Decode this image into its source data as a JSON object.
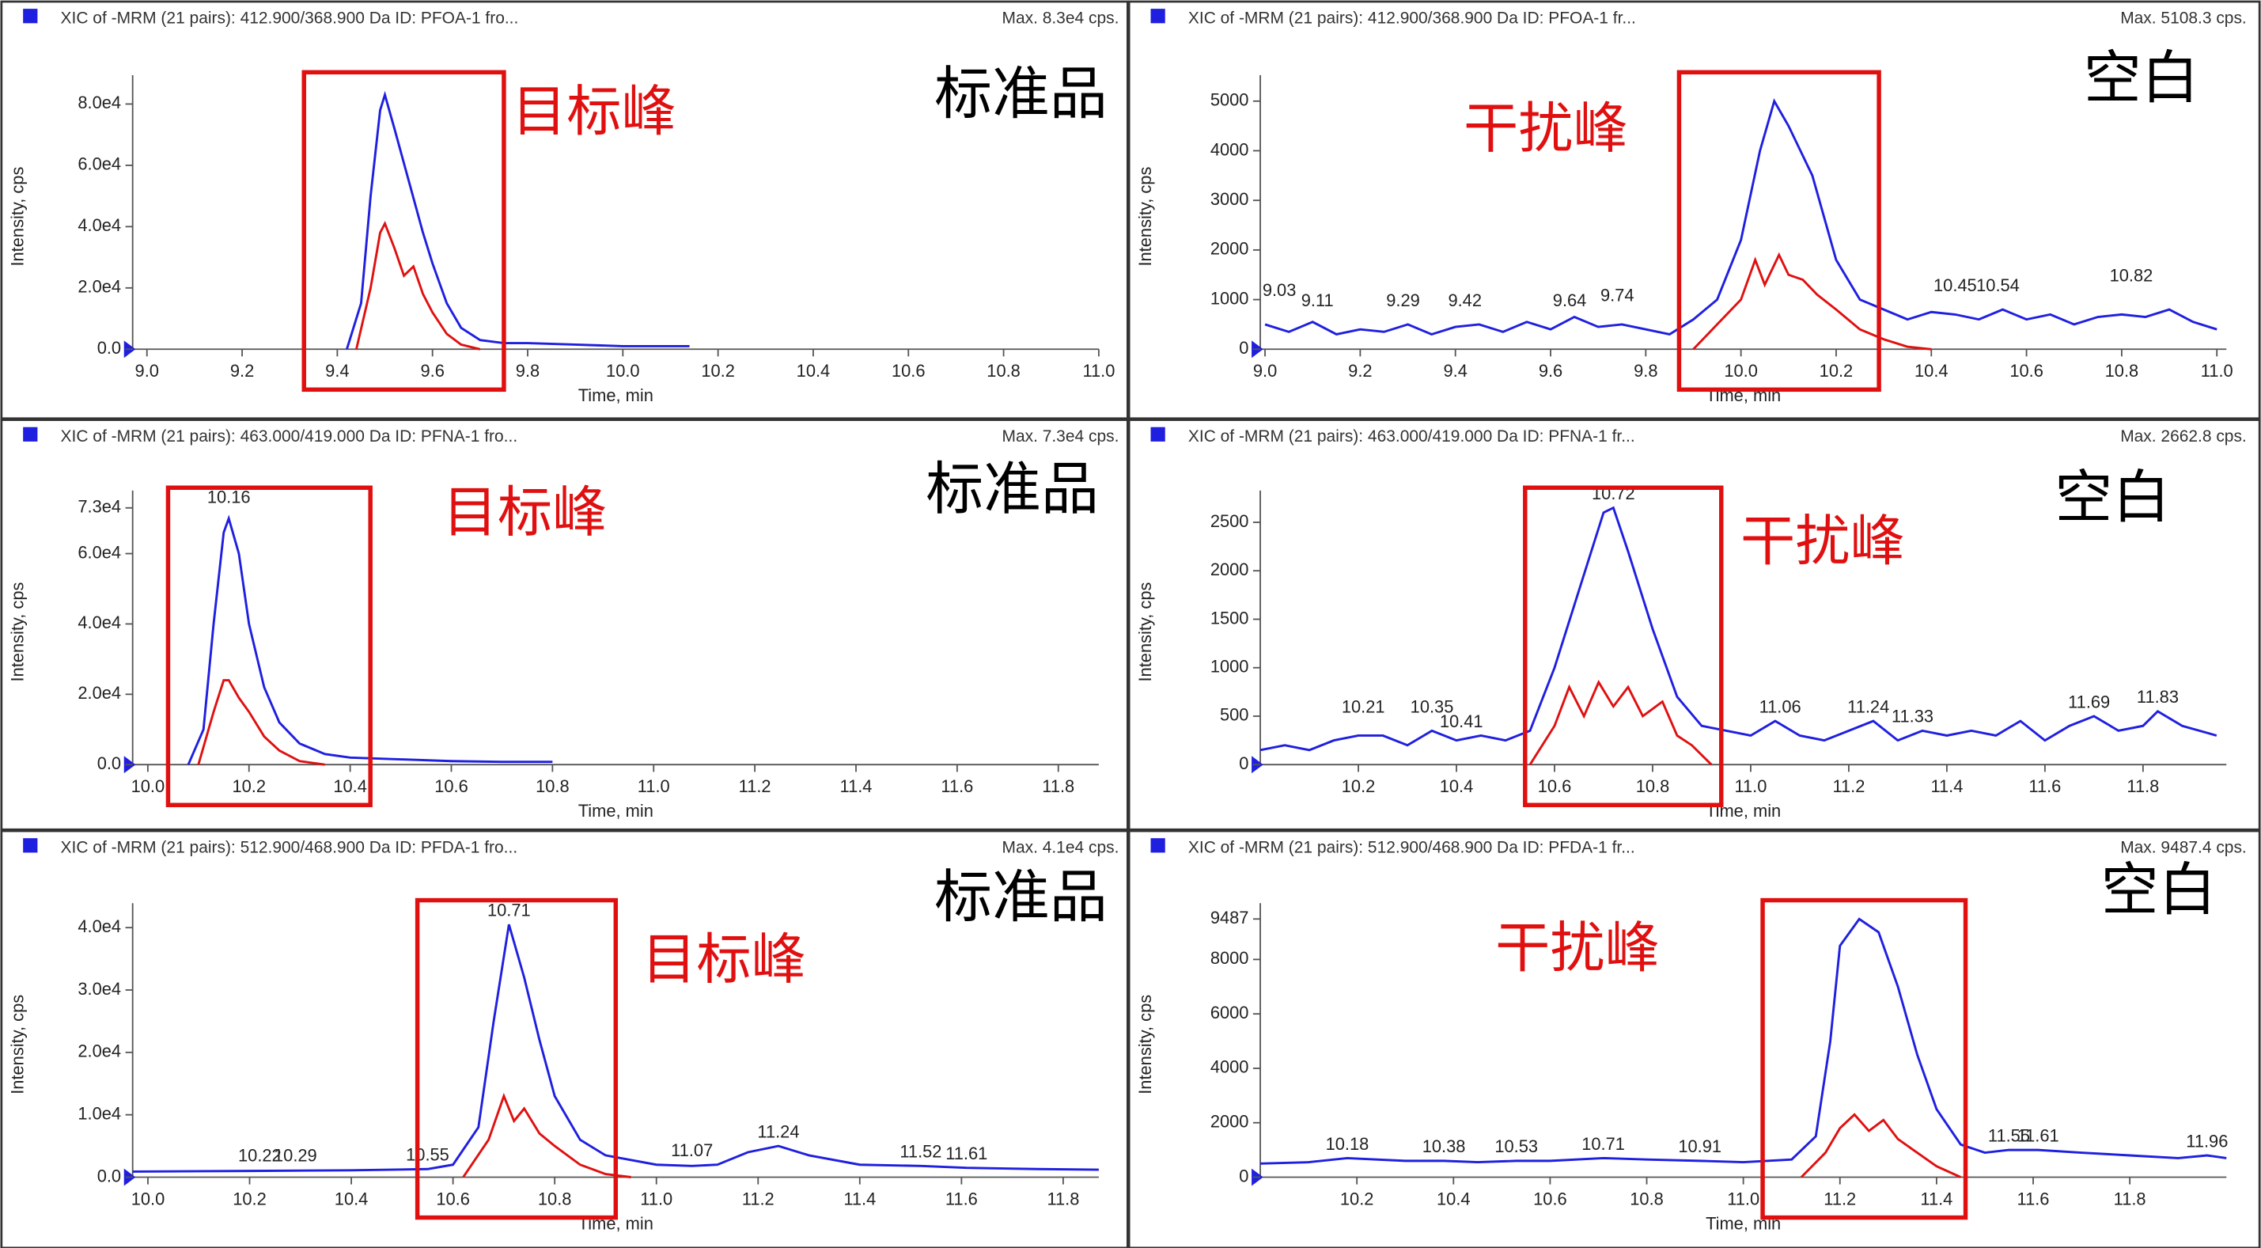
{
  "chart_data": [
    {
      "type": "line",
      "title": "XIC of -MRM (21 pairs): 412.900/368.900 Da ID: PFOA-1 fro...",
      "max_label": "Max. 8.3e4 cps.",
      "sample_label": "标准品",
      "xlabel": "Time, min",
      "ylabel": "Intensity, cps",
      "xlim": [
        8.97,
        11.0
      ],
      "ylim": [
        0,
        86600
      ],
      "xticks": [
        {
          "value": 9,
          "label": "9.0"
        },
        9.2,
        9.4,
        9.6,
        9.8,
        {
          "value": 10,
          "label": "10.0"
        },
        10.2,
        10.4,
        10.6,
        10.8,
        {
          "value": 11,
          "label": "11.0"
        }
      ],
      "yticks": [
        {
          "value": 0,
          "label": "0.0"
        },
        {
          "value": 20000,
          "label": "2.0e4"
        },
        {
          "value": 40000,
          "label": "4.0e4"
        },
        {
          "value": 60000,
          "label": "6.0e4"
        },
        {
          "value": 80000,
          "label": "8.0e4"
        }
      ],
      "series": [
        {
          "color": "#1f1fe0",
          "x": [
            9.42,
            9.45,
            9.47,
            9.49,
            9.5,
            9.52,
            9.55,
            9.58,
            9.6,
            9.63,
            9.66,
            9.7,
            9.75,
            9.8,
            9.9,
            10.0,
            10.14
          ],
          "values": [
            0,
            15000,
            50000,
            78000,
            83000,
            72000,
            55000,
            38000,
            28000,
            15000,
            7000,
            3000,
            2000,
            2000,
            1500,
            1000,
            1000
          ]
        },
        {
          "color": "#e01010",
          "x": [
            9.44,
            9.47,
            9.49,
            9.5,
            9.52,
            9.54,
            9.56,
            9.58,
            9.6,
            9.63,
            9.66,
            9.7
          ],
          "values": [
            0,
            20000,
            38000,
            41000,
            33000,
            24000,
            27000,
            18000,
            12000,
            5000,
            1500,
            0
          ]
        }
      ],
      "annotations": [],
      "highlight": {
        "label": "目标峰",
        "x": [
          9.33,
          9.75
        ],
        "color": "#e01010"
      }
    },
    {
      "type": "line",
      "title": "XIC of -MRM (21 pairs): 412.900/368.900 Da ID: PFOA-1 fr...",
      "max_label": "Max. 5108.3 cps.",
      "sample_label": "空白",
      "xlabel": "Time, min",
      "ylabel": "Intensity, cps",
      "xlim": [
        8.99,
        11.02
      ],
      "ylim": [
        0,
        5349
      ],
      "xticks": [
        {
          "value": 9,
          "label": "9.0"
        },
        9.2,
        9.4,
        9.6,
        9.8,
        {
          "value": 10,
          "label": "10.0"
        },
        10.2,
        10.4,
        10.6,
        10.8,
        {
          "value": 11,
          "label": "11.0"
        }
      ],
      "yticks": [
        0,
        1000,
        2000,
        3000,
        4000,
        5000
      ],
      "series": [
        {
          "color": "#1f1fe0",
          "x": [
            9.0,
            9.05,
            9.1,
            9.15,
            9.2,
            9.25,
            9.3,
            9.35,
            9.4,
            9.45,
            9.5,
            9.55,
            9.6,
            9.65,
            9.7,
            9.75,
            9.8,
            9.85,
            9.9,
            9.95,
            10.0,
            10.04,
            10.07,
            10.1,
            10.15,
            10.2,
            10.25,
            10.3,
            10.35,
            10.4,
            10.45,
            10.5,
            10.55,
            10.6,
            10.65,
            10.7,
            10.75,
            10.8,
            10.85,
            10.9,
            10.95,
            11.0
          ],
          "values": [
            500,
            350,
            550,
            300,
            400,
            350,
            500,
            300,
            450,
            500,
            350,
            550,
            400,
            650,
            450,
            500,
            400,
            300,
            600,
            1000,
            2200,
            4000,
            5000,
            4500,
            3500,
            1800,
            1000,
            800,
            600,
            750,
            700,
            600,
            800,
            600,
            700,
            500,
            650,
            700,
            650,
            800,
            550,
            400
          ]
        },
        {
          "color": "#e01010",
          "x": [
            9.9,
            9.95,
            10.0,
            10.03,
            10.05,
            10.08,
            10.1,
            10.13,
            10.16,
            10.2,
            10.25,
            10.3,
            10.35,
            10.4
          ],
          "values": [
            0,
            500,
            1000,
            1800,
            1300,
            1900,
            1500,
            1400,
            1100,
            800,
            400,
            200,
            50,
            0
          ]
        }
      ],
      "annotations": [
        {
          "x": 9.03,
          "y": 900
        },
        {
          "x": 9.11,
          "y": 700
        },
        {
          "x": 9.29,
          "y": 700
        },
        {
          "x": 9.42,
          "y": 700
        },
        {
          "x": 9.64,
          "y": 700
        },
        {
          "x": 9.74,
          "y": 800
        },
        {
          "x": 10.45,
          "y": 1000
        },
        {
          "x": 10.54,
          "y": 1000
        },
        {
          "x": 10.82,
          "y": 1200
        }
      ],
      "highlight": {
        "label": "干扰峰",
        "x": [
          9.87,
          10.29
        ],
        "color": "#e01010"
      }
    },
    {
      "type": "line",
      "title": "XIC of -MRM (21 pairs): 463.000/419.000 Da ID: PFNA-1 fro...",
      "max_label": "Max. 7.3e4 cps.",
      "sample_label": "标准品",
      "xlabel": "Time, min",
      "ylabel": "Intensity, cps",
      "xlim": [
        9.97,
        11.88
      ],
      "ylim": [
        0,
        75460
      ],
      "xticks": [
        {
          "value": 10,
          "label": "10.0"
        },
        10.2,
        10.4,
        10.6,
        10.8,
        {
          "value": 11,
          "label": "11.0"
        },
        11.2,
        11.4,
        11.6,
        11.8
      ],
      "yticks": [
        {
          "value": 0,
          "label": "0.0"
        },
        {
          "value": 20000,
          "label": "2.0e4"
        },
        {
          "value": 40000,
          "label": "4.0e4"
        },
        {
          "value": 60000,
          "label": "6.0e4"
        },
        {
          "value": 73000,
          "label": "7.3e4"
        }
      ],
      "series": [
        {
          "color": "#1f1fe0",
          "x": [
            10.08,
            10.11,
            10.13,
            10.15,
            10.16,
            10.18,
            10.2,
            10.23,
            10.26,
            10.3,
            10.35,
            10.4,
            10.5,
            10.6,
            10.7,
            10.8
          ],
          "values": [
            0,
            10000,
            40000,
            66000,
            70000,
            60000,
            40000,
            22000,
            12000,
            6000,
            3000,
            2000,
            1500,
            1000,
            800,
            800
          ]
        },
        {
          "color": "#e01010",
          "x": [
            10.1,
            10.13,
            10.15,
            10.16,
            10.18,
            10.2,
            10.23,
            10.26,
            10.3,
            10.35
          ],
          "values": [
            0,
            15000,
            24000,
            24000,
            19000,
            15000,
            8000,
            4000,
            1000,
            0
          ]
        }
      ],
      "annotations": [
        {
          "x": 10.16,
          "y": 72000
        }
      ],
      "highlight": {
        "label": "目标峰",
        "x": [
          10.04,
          10.44
        ],
        "color": "#e01010"
      }
    },
    {
      "type": "line",
      "title": "XIC of -MRM (21 pairs): 463.000/419.000 Da ID: PFNA-1 fr...",
      "max_label": "Max. 2662.8 cps.",
      "sample_label": "空白",
      "xlabel": "Time, min",
      "ylabel": "Intensity, cps",
      "xlim": [
        10.0,
        11.97
      ],
      "ylim": [
        0,
        2738
      ],
      "xticks": [
        10.2,
        10.4,
        10.6,
        10.8,
        {
          "value": 11,
          "label": "11.0"
        },
        11.2,
        11.4,
        11.6,
        11.8
      ],
      "yticks": [
        0,
        500,
        1000,
        1500,
        2000,
        2500
      ],
      "series": [
        {
          "color": "#1f1fe0",
          "x": [
            10.0,
            10.05,
            10.1,
            10.15,
            10.2,
            10.25,
            10.3,
            10.35,
            10.4,
            10.45,
            10.5,
            10.55,
            10.6,
            10.65,
            10.7,
            10.72,
            10.75,
            10.8,
            10.85,
            10.9,
            10.95,
            11.0,
            11.05,
            11.1,
            11.15,
            11.2,
            11.25,
            11.3,
            11.35,
            11.4,
            11.45,
            11.5,
            11.55,
            11.6,
            11.65,
            11.7,
            11.75,
            11.8,
            11.83,
            11.88,
            11.95
          ],
          "values": [
            150,
            200,
            150,
            250,
            300,
            300,
            200,
            350,
            250,
            300,
            250,
            350,
            1000,
            1800,
            2600,
            2650,
            2200,
            1400,
            700,
            400,
            350,
            300,
            450,
            300,
            250,
            350,
            450,
            250,
            350,
            300,
            350,
            300,
            450,
            250,
            400,
            500,
            350,
            400,
            550,
            400,
            300
          ]
        },
        {
          "color": "#e01010",
          "x": [
            10.55,
            10.6,
            10.63,
            10.66,
            10.69,
            10.72,
            10.75,
            10.78,
            10.82,
            10.85,
            10.88,
            10.92
          ],
          "values": [
            0,
            400,
            800,
            500,
            850,
            600,
            800,
            500,
            650,
            300,
            200,
            0
          ]
        }
      ],
      "annotations": [
        {
          "x": 10.21,
          "y": 450
        },
        {
          "x": 10.35,
          "y": 450
        },
        {
          "x": 10.41,
          "y": 300
        },
        {
          "x": 10.72,
          "y": 2650
        },
        {
          "x": 11.06,
          "y": 450
        },
        {
          "x": 11.24,
          "y": 450
        },
        {
          "x": 11.33,
          "y": 350
        },
        {
          "x": 11.69,
          "y": 500
        },
        {
          "x": 11.83,
          "y": 550
        }
      ],
      "highlight": {
        "label": "干扰峰",
        "x": [
          10.54,
          10.94
        ],
        "color": "#e01010"
      }
    },
    {
      "type": "line",
      "title": "XIC of -MRM (21 pairs): 512.900/468.900 Da ID: PFDA-1 fro...",
      "max_label": "Max. 4.1e4 cps.",
      "sample_label": "标准品",
      "xlabel": "Time, min",
      "ylabel": "Intensity, cps",
      "xlim": [
        9.97,
        11.87
      ],
      "ylim": [
        0,
        42540
      ],
      "xticks": [
        {
          "value": 10,
          "label": "10.0"
        },
        10.2,
        10.4,
        10.6,
        10.8,
        {
          "value": 11,
          "label": "11.0"
        },
        11.2,
        11.4,
        11.6,
        11.8
      ],
      "yticks": [
        {
          "value": 0,
          "label": "0.0"
        },
        {
          "value": 10000,
          "label": "1.0e4"
        },
        {
          "value": 20000,
          "label": "2.0e4"
        },
        {
          "value": 30000,
          "label": "3.0e4"
        },
        {
          "value": 40000,
          "label": "4.0e4"
        }
      ],
      "series": [
        {
          "color": "#1f1fe0",
          "x": [
            9.97,
            10.2,
            10.4,
            10.55,
            10.6,
            10.65,
            10.68,
            10.71,
            10.74,
            10.77,
            10.8,
            10.85,
            10.9,
            11.0,
            11.07,
            11.12,
            11.18,
            11.24,
            11.3,
            11.4,
            11.52,
            11.61,
            11.75,
            11.87
          ],
          "values": [
            900,
            1000,
            1100,
            1300,
            2000,
            8000,
            25000,
            40500,
            32000,
            22000,
            13000,
            6000,
            3500,
            2000,
            1800,
            2000,
            4000,
            5000,
            3500,
            2000,
            1800,
            1500,
            1300,
            1200
          ]
        },
        {
          "color": "#e01010",
          "x": [
            10.62,
            10.67,
            10.7,
            10.72,
            10.74,
            10.77,
            10.8,
            10.85,
            10.9,
            10.95
          ],
          "values": [
            0,
            6000,
            13000,
            9000,
            11000,
            7000,
            5000,
            2000,
            500,
            0
          ]
        }
      ],
      "annotations": [
        {
          "x": 10.22,
          "y": 1200
        },
        {
          "x": 10.29,
          "y": 1200
        },
        {
          "x": 10.55,
          "y": 1300
        },
        {
          "x": 10.71,
          "y": 40500
        },
        {
          "x": 11.07,
          "y": 2000
        },
        {
          "x": 11.24,
          "y": 5000
        },
        {
          "x": 11.52,
          "y": 1800
        },
        {
          "x": 11.61,
          "y": 1500
        }
      ],
      "highlight": {
        "label": "目标峰",
        "x": [
          10.53,
          10.92
        ],
        "color": "#e01010"
      }
    },
    {
      "type": "line",
      "title": "XIC of -MRM (21 pairs): 512.900/468.900 Da ID: PFDA-1 fr...",
      "max_label": "Max. 9487.4 cps.",
      "sample_label": "空白",
      "xlabel": "Time, min",
      "ylabel": "Intensity, cps",
      "xlim": [
        10.0,
        12.0
      ],
      "ylim": [
        0,
        9752
      ],
      "xticks": [
        10.2,
        10.4,
        10.6,
        10.8,
        {
          "value": 11,
          "label": "11.0"
        },
        11.2,
        11.4,
        11.6,
        11.8
      ],
      "yticks": [
        0,
        2000,
        4000,
        6000,
        8000,
        9487
      ],
      "series": [
        {
          "color": "#1f1fe0",
          "x": [
            10.0,
            10.1,
            10.18,
            10.3,
            10.38,
            10.45,
            10.53,
            10.6,
            10.71,
            10.8,
            10.91,
            11.0,
            11.1,
            11.15,
            11.18,
            11.2,
            11.24,
            11.28,
            11.32,
            11.36,
            11.4,
            11.45,
            11.5,
            11.55,
            11.61,
            11.7,
            11.8,
            11.9,
            11.96,
            12.0
          ],
          "values": [
            500,
            550,
            700,
            600,
            600,
            550,
            600,
            600,
            700,
            650,
            600,
            550,
            650,
            1500,
            5000,
            8500,
            9487,
            9000,
            7000,
            4500,
            2500,
            1200,
            900,
            1000,
            1000,
            900,
            800,
            700,
            800,
            700
          ]
        },
        {
          "color": "#e01010",
          "x": [
            11.12,
            11.17,
            11.2,
            11.23,
            11.26,
            11.29,
            11.32,
            11.36,
            11.4,
            11.45
          ],
          "values": [
            0,
            900,
            1800,
            2300,
            1700,
            2100,
            1400,
            900,
            400,
            0
          ]
        }
      ],
      "annotations": [
        {
          "x": 10.18,
          "y": 700
        },
        {
          "x": 10.38,
          "y": 600
        },
        {
          "x": 10.53,
          "y": 600
        },
        {
          "x": 10.71,
          "y": 700
        },
        {
          "x": 10.91,
          "y": 600
        },
        {
          "x": 11.55,
          "y": 1000
        },
        {
          "x": 11.61,
          "y": 1000
        },
        {
          "x": 11.96,
          "y": 800
        }
      ],
      "highlight": {
        "label": "干扰峰",
        "x": [
          11.04,
          11.46
        ],
        "color": "#e01010"
      }
    }
  ]
}
